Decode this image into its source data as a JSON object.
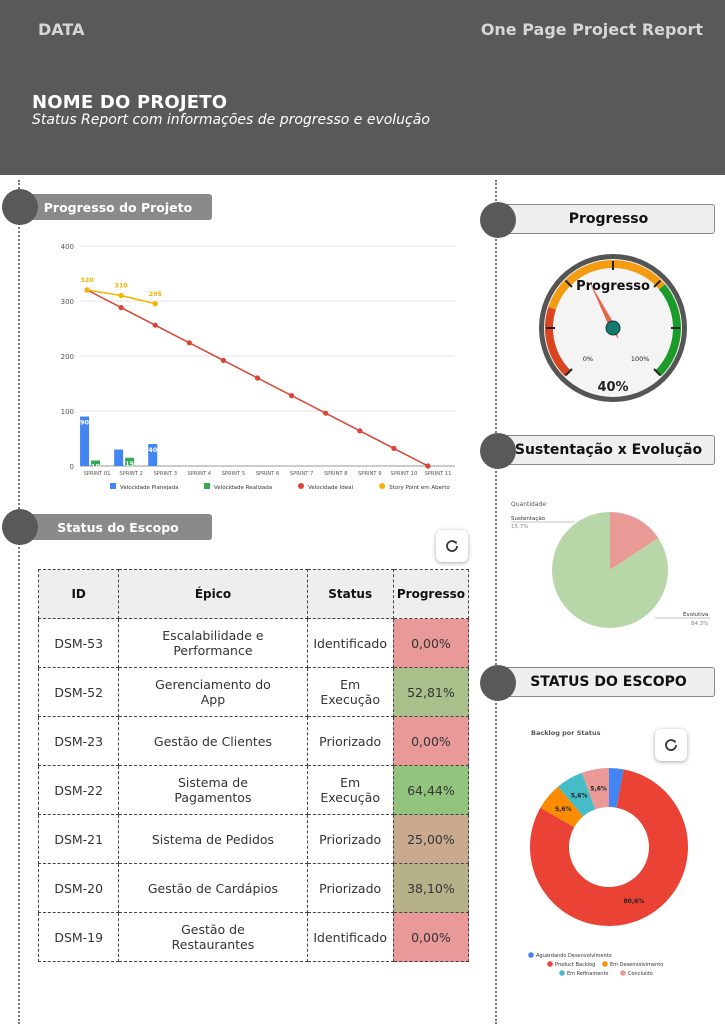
{
  "header": {
    "left": "DATA",
    "right": "One Page Project Report",
    "title": "NOME DO PROJETO",
    "subtitle": "Status Report com informações de progresso e evolução"
  },
  "sections": {
    "progresso_projeto": "Progresso do Projeto",
    "progresso": "Progresso",
    "sustentacao": "Sustentação x Evolução",
    "status_escopo_left": "Status do Escopo",
    "status_escopo_right": "STATUS DO ESCOPO"
  },
  "chart_data": [
    {
      "type": "bar",
      "categories": [
        "SPRINT 01",
        "SPRINT 2",
        "SPRINT 3",
        "SPRINT 4",
        "SPRINT 5",
        "SPRINT 6",
        "SPRINT 7",
        "SPRINT 8",
        "SPRINT 9",
        "SPRINT 10",
        "SPRINT 11"
      ],
      "ylim": [
        0,
        400
      ],
      "yticks": [
        0,
        100,
        200,
        300,
        400
      ],
      "series": [
        {
          "name": "Velocidade Planejada",
          "kind": "bar",
          "color": "#4285f4",
          "values": [
            90,
            30,
            40,
            null,
            null,
            null,
            null,
            null,
            null,
            null,
            null
          ],
          "labels": [
            "90",
            "",
            "40"
          ]
        },
        {
          "name": "Velocidade Realizada",
          "kind": "bar",
          "color": "#34a853",
          "values": [
            10,
            15,
            null,
            null,
            null,
            null,
            null,
            null,
            null,
            null,
            null
          ],
          "labels": [
            "10",
            "15",
            ""
          ]
        },
        {
          "name": "Velocidade Ideal",
          "kind": "line",
          "color": "#db4437",
          "values": [
            320,
            288,
            256,
            224,
            192,
            160,
            128,
            96,
            64,
            32,
            0
          ]
        },
        {
          "name": "Story Point em Aberto",
          "kind": "line",
          "color": "#f4b400",
          "values": [
            320,
            310,
            295,
            null,
            null,
            null,
            null,
            null,
            null,
            null,
            null
          ],
          "labels": [
            "320",
            "310",
            "295"
          ]
        }
      ]
    },
    {
      "type": "gauge",
      "title": "Progresso",
      "value": 40,
      "min_label": "0%",
      "max_label": "100%",
      "value_label": "40%"
    },
    {
      "type": "pie",
      "title": "Quantidade",
      "slices": [
        {
          "label": "Sustentação",
          "value": 15.7,
          "display": "15,7%",
          "color": "#e99a97"
        },
        {
          "label": "Evolutiva",
          "value": 84.3,
          "display": "84,3%",
          "color": "#b7d7a8"
        }
      ]
    },
    {
      "type": "pie",
      "title": "Backlog por Status",
      "slices": [
        {
          "label": "Aguardando Desenvolvimento",
          "value": 3.0,
          "display": "",
          "color": "#4285f4"
        },
        {
          "label": "Product Backlog",
          "value": 80.6,
          "display": "80,6%",
          "color": "#ea4335"
        },
        {
          "label": "Em Desenvolvimento",
          "value": 5.6,
          "display": "5,6%",
          "color": "#fb8c00"
        },
        {
          "label": "Em Refinamento",
          "value": 5.6,
          "display": "5,6%",
          "color": "#46bdc6"
        },
        {
          "label": "Concluído",
          "value": 5.6,
          "display": "5,6%",
          "color": "#e99a97"
        }
      ]
    }
  ],
  "table": {
    "headers": [
      "ID",
      "Épico",
      "Status",
      "Progresso"
    ],
    "rows": [
      {
        "id": "DSM-53",
        "epic": "Escalabilidade e Performance",
        "status": "Identificado",
        "progress": "0,00%",
        "color": "#ea9999"
      },
      {
        "id": "DSM-52",
        "epic": "Gerenciamento do App",
        "status": "Em Execução",
        "progress": "52,81%",
        "color": "#a9c08b"
      },
      {
        "id": "DSM-23",
        "epic": "Gestão de Clientes",
        "status": "Priorizado",
        "progress": "0,00%",
        "color": "#ea9999"
      },
      {
        "id": "DSM-22",
        "epic": "Sistema de Pagamentos",
        "status": "Em Execução",
        "progress": "64,44%",
        "color": "#93c47d"
      },
      {
        "id": "DSM-21",
        "epic": "Sistema de Pedidos",
        "status": "Priorizado",
        "progress": "25,00%",
        "color": "#c9aa8f"
      },
      {
        "id": "DSM-20",
        "epic": "Gestão de Cardápios",
        "status": "Priorizado",
        "progress": "38,10%",
        "color": "#b5b28a"
      },
      {
        "id": "DSM-19",
        "epic": "Gestão de Restaurantes",
        "status": "Identificado",
        "progress": "0,00%",
        "color": "#ea9999"
      }
    ]
  },
  "icons": {
    "refresh": "refresh-icon"
  }
}
